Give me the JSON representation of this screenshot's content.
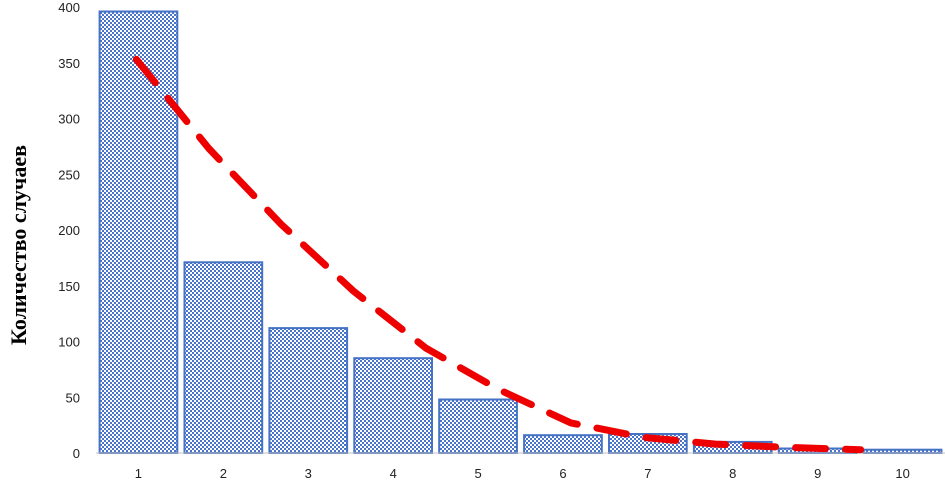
{
  "chart_data": {
    "type": "bar",
    "categories": [
      "1",
      "2",
      "3",
      "4",
      "5",
      "6",
      "7",
      "8",
      "9",
      "10"
    ],
    "values": [
      396,
      171,
      112,
      85,
      48,
      16,
      17,
      10,
      4,
      3
    ],
    "trend": [
      353,
      273,
      205,
      145,
      94,
      57,
      27,
      14,
      8,
      5,
      3
    ],
    "trend_type": "dashed-line",
    "trend_color": "#ee0000",
    "bar_color": "#4472c4",
    "xlabel": "",
    "ylabel": "Количество случаев",
    "ylim": [
      0,
      400
    ],
    "yticks": [
      "0",
      "50",
      "100",
      "150",
      "200",
      "250",
      "300",
      "350",
      "400"
    ],
    "grid": false,
    "legend": "none"
  }
}
